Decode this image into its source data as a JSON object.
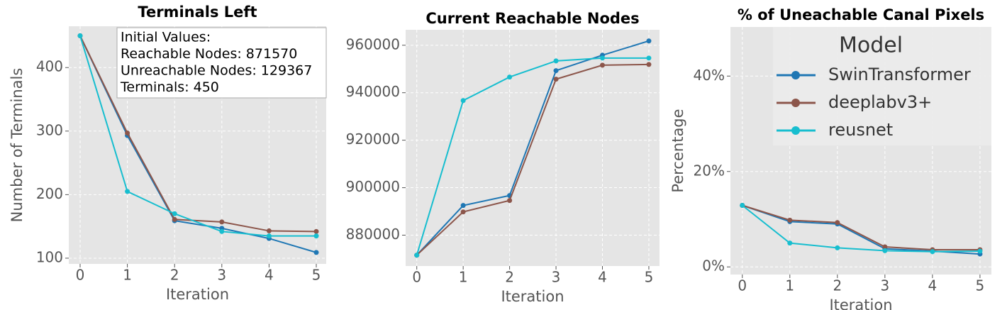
{
  "chart_data": [
    {
      "type": "line",
      "title": "Terminals Left",
      "x_label": "Iteration",
      "y_label": "Number of Terminals",
      "x": [
        0,
        1,
        2,
        3,
        4,
        5
      ],
      "xlim": [
        -0.24,
        5.21
      ],
      "xticks": [
        0,
        1,
        2,
        3,
        4,
        5
      ],
      "ylim": [
        91,
        465
      ],
      "yticks": [
        100,
        200,
        300,
        400
      ],
      "grid": true,
      "annotation": [
        "Initial Values:",
        "Reachable Nodes: 871570",
        "Unreachable Nodes: 129367",
        "Terminals: 450"
      ],
      "series": [
        {
          "name": "SwinTransformer",
          "color": "#1f77b4",
          "values": [
            450,
            293,
            159,
            147,
            131,
            109
          ]
        },
        {
          "name": "deeplabv3+",
          "color": "#8c564b",
          "values": [
            450,
            297,
            161,
            157,
            143,
            142
          ]
        },
        {
          "name": "reusnet",
          "color": "#17becf",
          "values": [
            450,
            205,
            170,
            142,
            135,
            135
          ]
        }
      ]
    },
    {
      "type": "line",
      "title": "Current Reachable Nodes",
      "x_label": "Iteration",
      "x": [
        0,
        1,
        2,
        3,
        4,
        5
      ],
      "xlim": [
        -0.24,
        5.23
      ],
      "xticks": [
        0,
        1,
        2,
        3,
        4,
        5
      ],
      "ylim": [
        867000,
        966500
      ],
      "yticks": [
        880000,
        900000,
        920000,
        940000,
        960000
      ],
      "grid": true,
      "series": [
        {
          "name": "SwinTransformer",
          "color": "#1f77b4",
          "values": [
            871570,
            892500,
            896700,
            949300,
            955800,
            961800
          ]
        },
        {
          "name": "deeplabv3+",
          "color": "#8c564b",
          "values": [
            871570,
            889800,
            894600,
            945700,
            951600,
            951900
          ]
        },
        {
          "name": "reusnet",
          "color": "#17becf",
          "values": [
            871570,
            936700,
            946600,
            953400,
            954600,
            954600
          ]
        }
      ]
    },
    {
      "type": "line",
      "title": "% of Uneachable Canal Pixels",
      "x_label": "Iteration",
      "y_label": "Percentage",
      "x": [
        0,
        1,
        2,
        3,
        4,
        5
      ],
      "xlim": [
        -0.25,
        5.24
      ],
      "xticks": [
        0,
        1,
        2,
        3,
        4,
        5
      ],
      "ylim": [
        -1.6,
        50.3
      ],
      "yticks": [
        {
          "value": 0,
          "label": "0%"
        },
        {
          "value": 20,
          "label": "20%"
        },
        {
          "value": 40,
          "label": "40%"
        }
      ],
      "grid": true,
      "legend": "upper right",
      "legend_title": "Model",
      "series": [
        {
          "name": "SwinTransformer",
          "color": "#1f77b4",
          "values": [
            12.9,
            9.5,
            9.0,
            3.8,
            3.3,
            2.7
          ]
        },
        {
          "name": "deeplabv3+",
          "color": "#8c564b",
          "values": [
            12.9,
            9.8,
            9.3,
            4.2,
            3.6,
            3.6
          ]
        },
        {
          "name": "reusnet",
          "color": "#17becf",
          "values": [
            12.9,
            5.0,
            4.0,
            3.4,
            3.2,
            3.3
          ]
        }
      ]
    }
  ]
}
